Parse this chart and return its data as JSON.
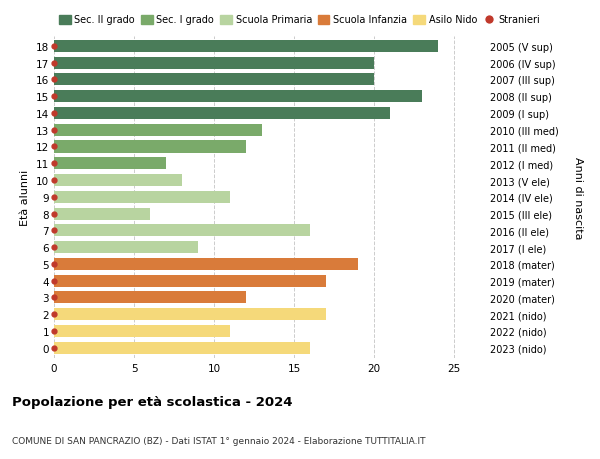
{
  "ages": [
    18,
    17,
    16,
    15,
    14,
    13,
    12,
    11,
    10,
    9,
    8,
    7,
    6,
    5,
    4,
    3,
    2,
    1,
    0
  ],
  "years": [
    "2005 (V sup)",
    "2006 (IV sup)",
    "2007 (III sup)",
    "2008 (II sup)",
    "2009 (I sup)",
    "2010 (III med)",
    "2011 (II med)",
    "2012 (I med)",
    "2013 (V ele)",
    "2014 (IV ele)",
    "2015 (III ele)",
    "2016 (II ele)",
    "2017 (I ele)",
    "2018 (mater)",
    "2019 (mater)",
    "2020 (mater)",
    "2021 (nido)",
    "2022 (nido)",
    "2023 (nido)"
  ],
  "values": [
    24,
    20,
    20,
    23,
    21,
    13,
    12,
    7,
    8,
    11,
    6,
    16,
    9,
    19,
    17,
    12,
    17,
    11,
    16
  ],
  "colors": [
    "#4a7c59",
    "#4a7c59",
    "#4a7c59",
    "#4a7c59",
    "#4a7c59",
    "#7aaa6a",
    "#7aaa6a",
    "#7aaa6a",
    "#b8d4a0",
    "#b8d4a0",
    "#b8d4a0",
    "#b8d4a0",
    "#b8d4a0",
    "#d97b3a",
    "#d97b3a",
    "#d97b3a",
    "#f5d97a",
    "#f5d97a",
    "#f5d97a"
  ],
  "legend_labels": [
    "Sec. II grado",
    "Sec. I grado",
    "Scuola Primaria",
    "Scuola Infanzia",
    "Asilo Nido",
    "Stranieri"
  ],
  "legend_colors": [
    "#4a7c59",
    "#7aaa6a",
    "#b8d4a0",
    "#d97b3a",
    "#f5d97a",
    "#c0392b"
  ],
  "dot_color": "#c0392b",
  "title": "Popolazione per età scolastica - 2024",
  "subtitle": "COMUNE DI SAN PANCRAZIO (BZ) - Dati ISTAT 1° gennaio 2024 - Elaborazione TUTTITALIA.IT",
  "ylabel_left": "Età alunni",
  "ylabel_right": "Anni di nascita",
  "xlim": [
    0,
    27
  ],
  "xticks": [
    0,
    5,
    10,
    15,
    20,
    25
  ],
  "bg_color": "#ffffff",
  "grid_color": "#cccccc"
}
